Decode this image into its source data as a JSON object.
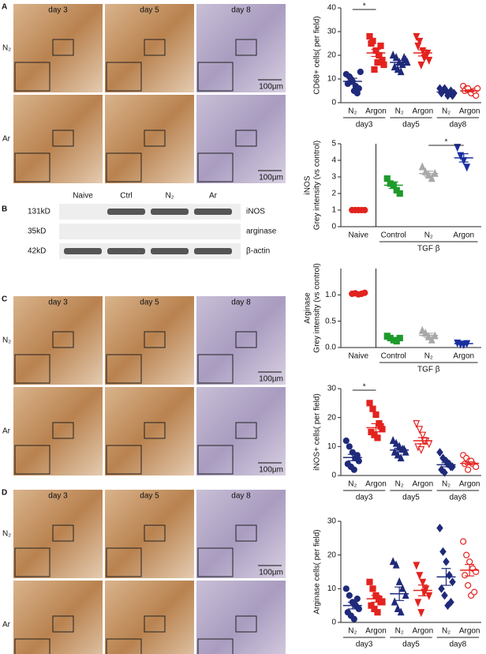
{
  "panels": [
    {
      "letter": "A",
      "days": [
        "day 3",
        "day 5",
        "day 8"
      ],
      "rows": [
        "N₂",
        "Ar"
      ],
      "scale_bar": "100µm"
    },
    {
      "letter": "C",
      "days": [
        "day 3",
        "day 5",
        "day 8"
      ],
      "rows": [
        "N₂",
        "Ar"
      ],
      "scale_bar": "100µm"
    },
    {
      "letter": "D",
      "days": [
        "day 3",
        "day 5",
        "day 8"
      ],
      "rows": [
        "N₂",
        "Ar"
      ],
      "scale_bar": "100µm"
    }
  ],
  "blot": {
    "letter": "B",
    "lanes": [
      "Naive",
      "Ctrl",
      "N₂",
      "Ar"
    ],
    "rows": [
      {
        "weight": "131kD",
        "protein": "iNOS"
      },
      {
        "weight": "35kD",
        "protein": "arginase"
      },
      {
        "weight": "42kD",
        "protein": "β-actin"
      }
    ]
  },
  "chart_data": [
    {
      "type": "dot",
      "ylabel": [
        "CD68+ cells( per field)"
      ],
      "ylim": [
        0,
        40
      ],
      "yticks": [
        0,
        10,
        20,
        30,
        40
      ],
      "groups": [
        {
          "label": "N₂",
          "color": "#1f2a7a",
          "marker": "circle",
          "filled": true,
          "values": [
            12,
            11,
            9,
            7,
            6,
            8,
            10,
            5,
            4,
            13
          ],
          "mean": 9,
          "sem": 1.3
        },
        {
          "label": "Argon",
          "color": "#e3231f",
          "marker": "square",
          "filled": true,
          "values": [
            28,
            26,
            22,
            20,
            18,
            25,
            14,
            17,
            24,
            16
          ],
          "mean": 21,
          "sem": 1.5
        },
        {
          "label": "N₂",
          "color": "#1f2a7a",
          "marker": "triangle",
          "filled": true,
          "values": [
            20,
            19,
            17,
            16,
            18,
            15,
            14,
            13,
            19,
            17
          ],
          "mean": 17,
          "sem": 0.8
        },
        {
          "label": "Argon",
          "color": "#e3231f",
          "marker": "down-triangle",
          "filled": true,
          "values": [
            28,
            26,
            22,
            20,
            18,
            24,
            16,
            19,
            21
          ],
          "mean": 21,
          "sem": 1.3
        },
        {
          "label": "N₂",
          "color": "#1f2a7a",
          "marker": "diamond",
          "filled": true,
          "values": [
            6,
            5,
            5,
            4,
            3,
            4,
            6,
            3,
            5,
            4
          ],
          "mean": 4.5,
          "sem": 0.4
        },
        {
          "label": "Argon",
          "color": "#e3231f",
          "marker": "circle",
          "filled": false,
          "values": [
            7,
            6,
            5,
            4,
            3,
            5,
            6,
            4,
            5,
            6
          ],
          "mean": 5,
          "sem": 0.4
        }
      ],
      "group_labels": [
        {
          "text": "day3",
          "groups": [
            0,
            1
          ]
        },
        {
          "text": "day5",
          "groups": [
            2,
            3
          ]
        },
        {
          "text": "day8",
          "groups": [
            4,
            5
          ]
        }
      ],
      "significance": {
        "text": "*",
        "groups": [
          0,
          1
        ]
      }
    },
    {
      "type": "dot",
      "ylabel": [
        "iNOS",
        "Grey intensity (vs control)"
      ],
      "ylim": [
        0,
        5
      ],
      "yticks": [
        0,
        1,
        2,
        3,
        4,
        5
      ],
      "groups": [
        {
          "label": "Naive",
          "color": "#e3231f",
          "marker": "circle",
          "filled": true,
          "values": [
            1,
            1,
            1,
            1,
            1
          ],
          "mean": 1,
          "sem": 0.02
        },
        {
          "label": "Control",
          "color": "#1e9a2c",
          "marker": "square",
          "filled": true,
          "values": [
            2.9,
            2.6,
            2.5,
            2.2,
            2.0
          ],
          "mean": 2.5,
          "sem": 0.2
        },
        {
          "label": "N₂",
          "color": "#a8a8a8",
          "marker": "triangle",
          "filled": true,
          "values": [
            3.6,
            3.3,
            3.1,
            2.9,
            3.2
          ],
          "mean": 3.2,
          "sem": 0.15
        },
        {
          "label": "Argon",
          "color": "#1a2fa0",
          "marker": "down-triangle",
          "filled": true,
          "values": [
            4.8,
            4.3,
            4.0,
            3.6
          ],
          "mean": 4.15,
          "sem": 0.25
        }
      ],
      "group_labels": [
        {
          "text": "TGF β",
          "groups": [
            1,
            3
          ]
        }
      ],
      "divider_after": 0,
      "significance": {
        "text": "*",
        "groups": [
          2,
          3
        ]
      }
    },
    {
      "type": "dot",
      "ylabel": [
        "Arginase",
        "Grey intensity (vs control)"
      ],
      "ylim": [
        0,
        1.5
      ],
      "yticks": [
        {
          "value": 0,
          "label": "0.0"
        },
        {
          "value": 0.5,
          "label": "0.5"
        },
        {
          "value": 1,
          "label": "1.0"
        }
      ],
      "groups": [
        {
          "label": "Naive",
          "color": "#e3231f",
          "marker": "circle",
          "filled": true,
          "values": [
            1.02,
            1.03,
            1.01,
            1.02,
            1.04
          ],
          "mean": 1.02,
          "sem": 0.01
        },
        {
          "label": "Control",
          "color": "#1e9a2c",
          "marker": "square",
          "filled": true,
          "values": [
            0.22,
            0.18,
            0.14,
            0.12,
            0.18
          ],
          "mean": 0.16,
          "sem": 0.03
        },
        {
          "label": "N₂",
          "color": "#a8a8a8",
          "marker": "triangle",
          "filled": true,
          "values": [
            0.32,
            0.27,
            0.2,
            0.14,
            0.22
          ],
          "mean": 0.23,
          "sem": 0.04
        },
        {
          "label": "Argon",
          "color": "#1a2fa0",
          "marker": "down-triangle",
          "filled": true,
          "values": [
            0.09,
            0.07,
            0.06,
            0.08
          ],
          "mean": 0.075,
          "sem": 0.01
        }
      ],
      "group_labels": [
        {
          "text": "TGF β",
          "groups": [
            1,
            3
          ]
        }
      ],
      "divider_after": 0
    },
    {
      "type": "dot",
      "ylabel": [
        "iNOS+ cells( per field)"
      ],
      "ylim": [
        0,
        30
      ],
      "yticks": [
        0,
        10,
        20,
        30
      ],
      "groups": [
        {
          "label": "N₂",
          "color": "#1f2a7a",
          "marker": "circle",
          "filled": true,
          "values": [
            12,
            10,
            8,
            6,
            5,
            4,
            3,
            2,
            7
          ],
          "mean": 6.2,
          "sem": 1.1
        },
        {
          "label": "Argon",
          "color": "#e3231f",
          "marker": "square",
          "filled": true,
          "values": [
            25,
            23,
            21,
            18,
            16,
            15,
            14,
            13,
            17
          ],
          "mean": 16.5,
          "sem": 1.4
        },
        {
          "label": "N₂",
          "color": "#1f2a7a",
          "marker": "triangle",
          "filled": true,
          "values": [
            12,
            11,
            10,
            9,
            8,
            8,
            7,
            6,
            9
          ],
          "mean": 8.8,
          "sem": 0.6
        },
        {
          "label": "Argon",
          "color": "#e3231f",
          "marker": "down-triangle",
          "filled": false,
          "values": [
            18,
            16,
            14,
            12,
            11,
            10,
            9,
            12
          ],
          "mean": 12,
          "sem": 1.1
        },
        {
          "label": "N₂",
          "color": "#1f2a7a",
          "marker": "diamond",
          "filled": true,
          "values": [
            8,
            6,
            5,
            4,
            3,
            2,
            1,
            4,
            3
          ],
          "mean": 3.7,
          "sem": 0.7
        },
        {
          "label": "Argon",
          "color": "#e3231f",
          "marker": "circle",
          "filled": false,
          "values": [
            7,
            6,
            5,
            4,
            3,
            4,
            2,
            5
          ],
          "mean": 4.2,
          "sem": 0.5
        }
      ],
      "group_labels": [
        {
          "text": "day3",
          "groups": [
            0,
            1
          ]
        },
        {
          "text": "day5",
          "groups": [
            2,
            3
          ]
        },
        {
          "text": "day8",
          "groups": [
            4,
            5
          ]
        }
      ],
      "significance": {
        "text": "*",
        "groups": [
          0,
          1
        ]
      }
    },
    {
      "type": "dot",
      "ylabel": [
        "Arginase cells( per field)"
      ],
      "ylim": [
        0,
        30
      ],
      "yticks": [
        0,
        10,
        20,
        30
      ],
      "groups": [
        {
          "label": "N₂",
          "color": "#1f2a7a",
          "marker": "circle",
          "filled": true,
          "values": [
            10,
            8,
            6,
            5,
            4,
            3,
            2,
            1,
            7
          ],
          "mean": 5,
          "sem": 1
        },
        {
          "label": "Argon",
          "color": "#e3231f",
          "marker": "square",
          "filled": true,
          "values": [
            12,
            10,
            8,
            7,
            6,
            5,
            4,
            3,
            6
          ],
          "mean": 7,
          "sem": 1
        },
        {
          "label": "N₂",
          "color": "#1f2a7a",
          "marker": "triangle",
          "filled": true,
          "values": [
            18,
            17,
            12,
            10,
            8,
            6,
            4,
            3
          ],
          "mean": 8.5,
          "sem": 2
        },
        {
          "label": "Argon",
          "color": "#e3231f",
          "marker": "down-triangle",
          "filled": true,
          "values": [
            17,
            14,
            12,
            10,
            8,
            6,
            3,
            9
          ],
          "mean": 9.5,
          "sem": 1.6
        },
        {
          "label": "N₂",
          "color": "#1f2a7a",
          "marker": "diamond",
          "filled": true,
          "values": [
            28,
            21,
            18,
            14,
            12,
            10,
            8,
            5,
            6
          ],
          "mean": 13.5,
          "sem": 2.5
        },
        {
          "label": "Argon",
          "color": "#e3231f",
          "marker": "circle",
          "filled": false,
          "values": [
            24,
            20,
            18,
            16,
            15,
            14,
            11,
            8,
            9
          ],
          "mean": 15.5,
          "sem": 1.7
        }
      ],
      "group_labels": [
        {
          "text": "day3",
          "groups": [
            0,
            1
          ]
        },
        {
          "text": "day5",
          "groups": [
            2,
            3
          ]
        },
        {
          "text": "day8",
          "groups": [
            4,
            5
          ]
        }
      ]
    }
  ]
}
